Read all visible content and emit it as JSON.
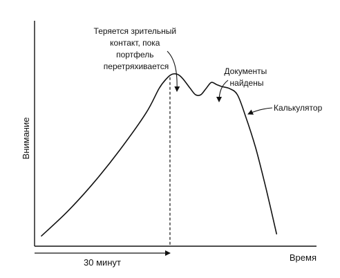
{
  "chart_data": {
    "type": "line",
    "title": "",
    "xlabel": "Время",
    "ylabel": "Внимание",
    "grid": false,
    "legend": "none",
    "xlim": [
      0,
      100
    ],
    "ylim": [
      0,
      100
    ],
    "x_marker_label": "30 минут",
    "x_marker": 49.2,
    "series": [
      {
        "points": [
          [
            0,
            5
          ],
          [
            10,
            17
          ],
          [
            20,
            31
          ],
          [
            30,
            47
          ],
          [
            40,
            65
          ],
          [
            45,
            77
          ],
          [
            48,
            82
          ],
          [
            50,
            84
          ],
          [
            52,
            84
          ],
          [
            54,
            82
          ],
          [
            57,
            77
          ],
          [
            59,
            74
          ],
          [
            61,
            74
          ],
          [
            63,
            77
          ],
          [
            65,
            80
          ],
          [
            67,
            79
          ],
          [
            69,
            78
          ],
          [
            72,
            77
          ],
          [
            75,
            74
          ],
          [
            78,
            64
          ],
          [
            82,
            48
          ],
          [
            86,
            28
          ],
          [
            90,
            6
          ]
        ]
      }
    ],
    "annotations": [
      {
        "lines": [
          "Теряется зрительный",
          "контакт, пока",
          "портфель",
          "перетряхивается"
        ],
        "x": 52
      },
      {
        "lines": [
          "Документы",
          "найдены"
        ],
        "x": 65
      },
      {
        "lines": [
          "Калькулятор"
        ],
        "x": 72
      }
    ]
  }
}
